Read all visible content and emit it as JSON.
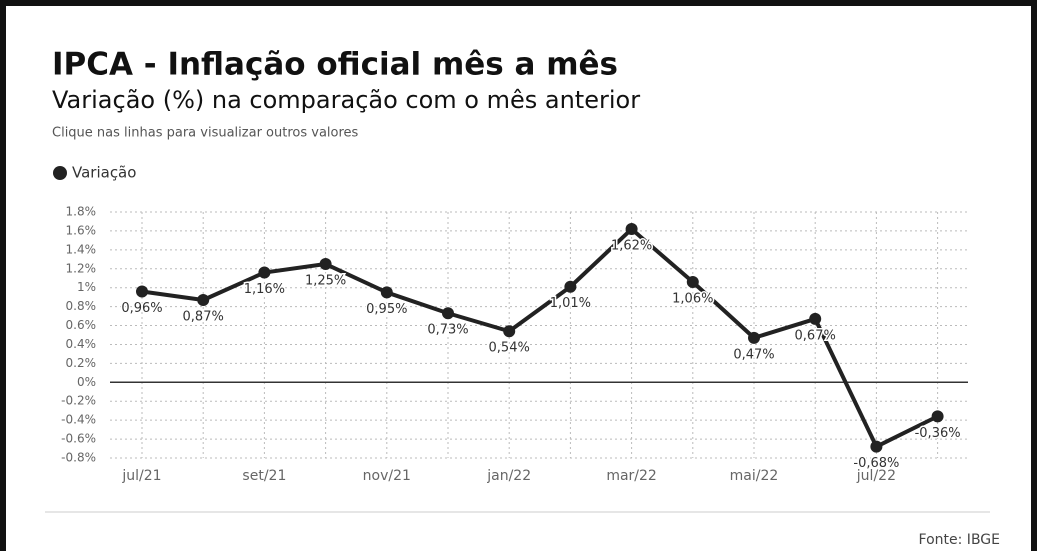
{
  "chart_data": {
    "type": "line",
    "title": "IPCA - Inflação oficial mês a mês",
    "subtitle": "Variação (%) na comparação com o mês anterior",
    "note": "Clique nas linhas para visualizar outros valores",
    "source": "Fonte: IBGE",
    "categories": [
      "jul/21",
      null,
      "set/21",
      null,
      "nov/21",
      null,
      "jan/22",
      null,
      "mar/22",
      null,
      "mai/22",
      null,
      "jul/22",
      null
    ],
    "series": [
      {
        "name": "Variação",
        "color": "#222222",
        "values": [
          0.96,
          0.87,
          1.16,
          1.25,
          0.95,
          0.73,
          0.54,
          1.01,
          1.62,
          1.06,
          0.47,
          0.67,
          -0.68,
          -0.36
        ],
        "value_labels": [
          "0,96%",
          "0,87%",
          "1,16%",
          "1,25%",
          "0,95%",
          "0,73%",
          "0,54%",
          "1,01%",
          "1,62%",
          "1,06%",
          "0,47%",
          "0,67%",
          "-0,68%",
          "-0,36%"
        ]
      }
    ],
    "ylim": [
      -0.8,
      1.8
    ],
    "yticks": [
      {
        "value": 1.8,
        "label": "1.8%"
      },
      {
        "value": 1.6,
        "label": "1.6%"
      },
      {
        "value": 1.4,
        "label": "1.4%"
      },
      {
        "value": 1.2,
        "label": "1.2%"
      },
      {
        "value": 1,
        "label": "1%"
      },
      {
        "value": 0.8,
        "label": "0.8%"
      },
      {
        "value": 0.6,
        "label": "0.6%"
      },
      {
        "value": 0.4,
        "label": "0.4%"
      },
      {
        "value": 0.2,
        "label": "0.2%"
      },
      {
        "value": 0,
        "label": "0%"
      },
      {
        "value": -0.2,
        "label": "-0.2%"
      },
      {
        "value": -0.4,
        "label": "-0.4%"
      },
      {
        "value": -0.6,
        "label": "-0.6%"
      },
      {
        "value": -0.8,
        "label": "-0.8%"
      }
    ],
    "grid": true
  }
}
